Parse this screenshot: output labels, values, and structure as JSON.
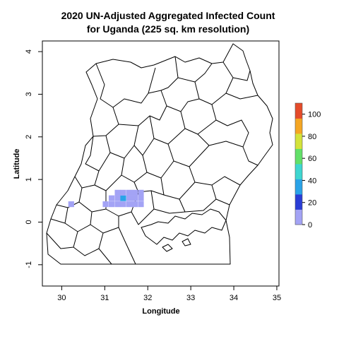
{
  "chart_data": {
    "type": "heatmap",
    "title_line1": "2020 UN-Adjusted Aggregated Infected Count",
    "title_line2": "for Uganda (225 sq. km resolution)",
    "xlabel": "Longitude",
    "ylabel": "Latitude",
    "xlim": [
      29.55,
      35.05
    ],
    "ylim": [
      -1.5,
      4.25
    ],
    "xticks": [
      30,
      31,
      32,
      33,
      34,
      35
    ],
    "yticks": [
      -1,
      0,
      1,
      2,
      3,
      4
    ],
    "cell_size_deg": 0.135,
    "cells": [
      {
        "lon": 30.22,
        "lat": 0.42,
        "value": 3
      },
      {
        "lon": 31.02,
        "lat": 0.42,
        "value": 4
      },
      {
        "lon": 31.16,
        "lat": 0.42,
        "value": 3
      },
      {
        "lon": 31.16,
        "lat": 0.56,
        "value": 3
      },
      {
        "lon": 31.3,
        "lat": 0.42,
        "value": 3
      },
      {
        "lon": 31.3,
        "lat": 0.56,
        "value": 5
      },
      {
        "lon": 31.3,
        "lat": 0.69,
        "value": 3
      },
      {
        "lon": 31.43,
        "lat": 0.42,
        "value": 4
      },
      {
        "lon": 31.43,
        "lat": 0.56,
        "value": 40
      },
      {
        "lon": 31.43,
        "lat": 0.69,
        "value": 4
      },
      {
        "lon": 31.57,
        "lat": 0.42,
        "value": 3
      },
      {
        "lon": 31.57,
        "lat": 0.56,
        "value": 4
      },
      {
        "lon": 31.57,
        "lat": 0.69,
        "value": 3
      },
      {
        "lon": 31.7,
        "lat": 0.42,
        "value": 3
      },
      {
        "lon": 31.7,
        "lat": 0.56,
        "value": 3
      },
      {
        "lon": 31.7,
        "lat": 0.69,
        "value": 3
      },
      {
        "lon": 31.84,
        "lat": 0.42,
        "value": 2
      },
      {
        "lon": 31.84,
        "lat": 0.56,
        "value": 2
      },
      {
        "lon": 31.84,
        "lat": 0.69,
        "value": 2
      }
    ],
    "legend": {
      "min": 0,
      "max": 110,
      "ticks": [
        0,
        20,
        40,
        60,
        80,
        100
      ],
      "colors": [
        "#a3a3f5",
        "#2a3dd6",
        "#2aa3e8",
        "#3ed6d0",
        "#62e068",
        "#d4e33a",
        "#f5a623",
        "#e54b2a"
      ]
    },
    "map": {
      "outline_color": "#000000",
      "fill_color": "#ffffff"
    }
  }
}
